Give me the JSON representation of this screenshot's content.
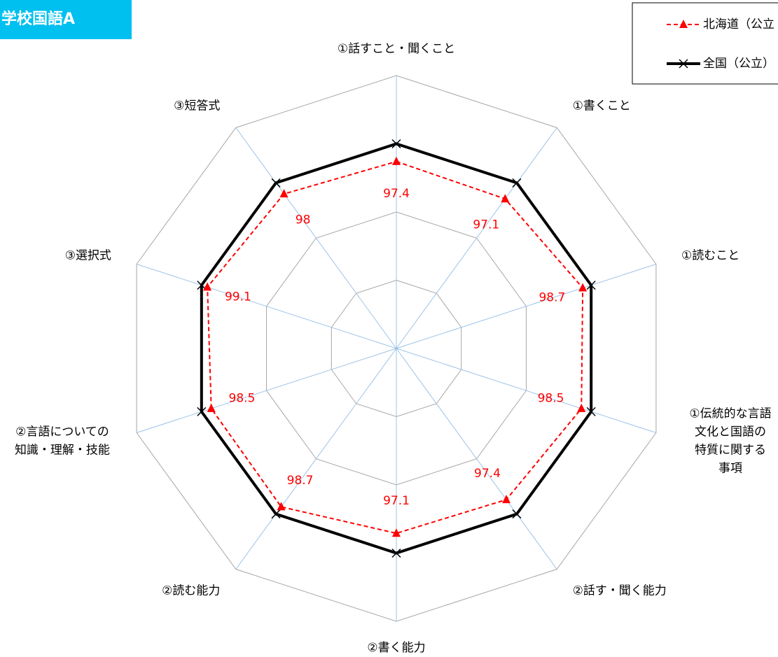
{
  "chart_data": {
    "type": "radar",
    "title": "学校国語A",
    "categories": [
      "①話すこと・聞くこと",
      "①書くこと",
      "①読むこと",
      "①伝統的な言語\n文化と国語の\n特質に関する\n事項",
      "②話す・聞く能力",
      "②書く能力",
      "②読む能力",
      "②言語についての\n知識・理解・技能",
      "③選択式",
      "③短答式"
    ],
    "series": [
      {
        "name": "北海道（公立",
        "color": "#ff0000",
        "values": [
          97.4,
          97.1,
          98.7,
          98.5,
          97.4,
          97.1,
          98.7,
          98.5,
          99.1,
          98.0
        ]
      },
      {
        "name": "全国（公立）",
        "color": "#000000",
        "values": [
          100,
          100,
          100,
          100,
          100,
          100,
          100,
          100,
          100,
          100
        ]
      }
    ],
    "ylim": [
      70,
      110
    ],
    "yticks": [
      70,
      80,
      90,
      100,
      110
    ],
    "grid": true
  }
}
